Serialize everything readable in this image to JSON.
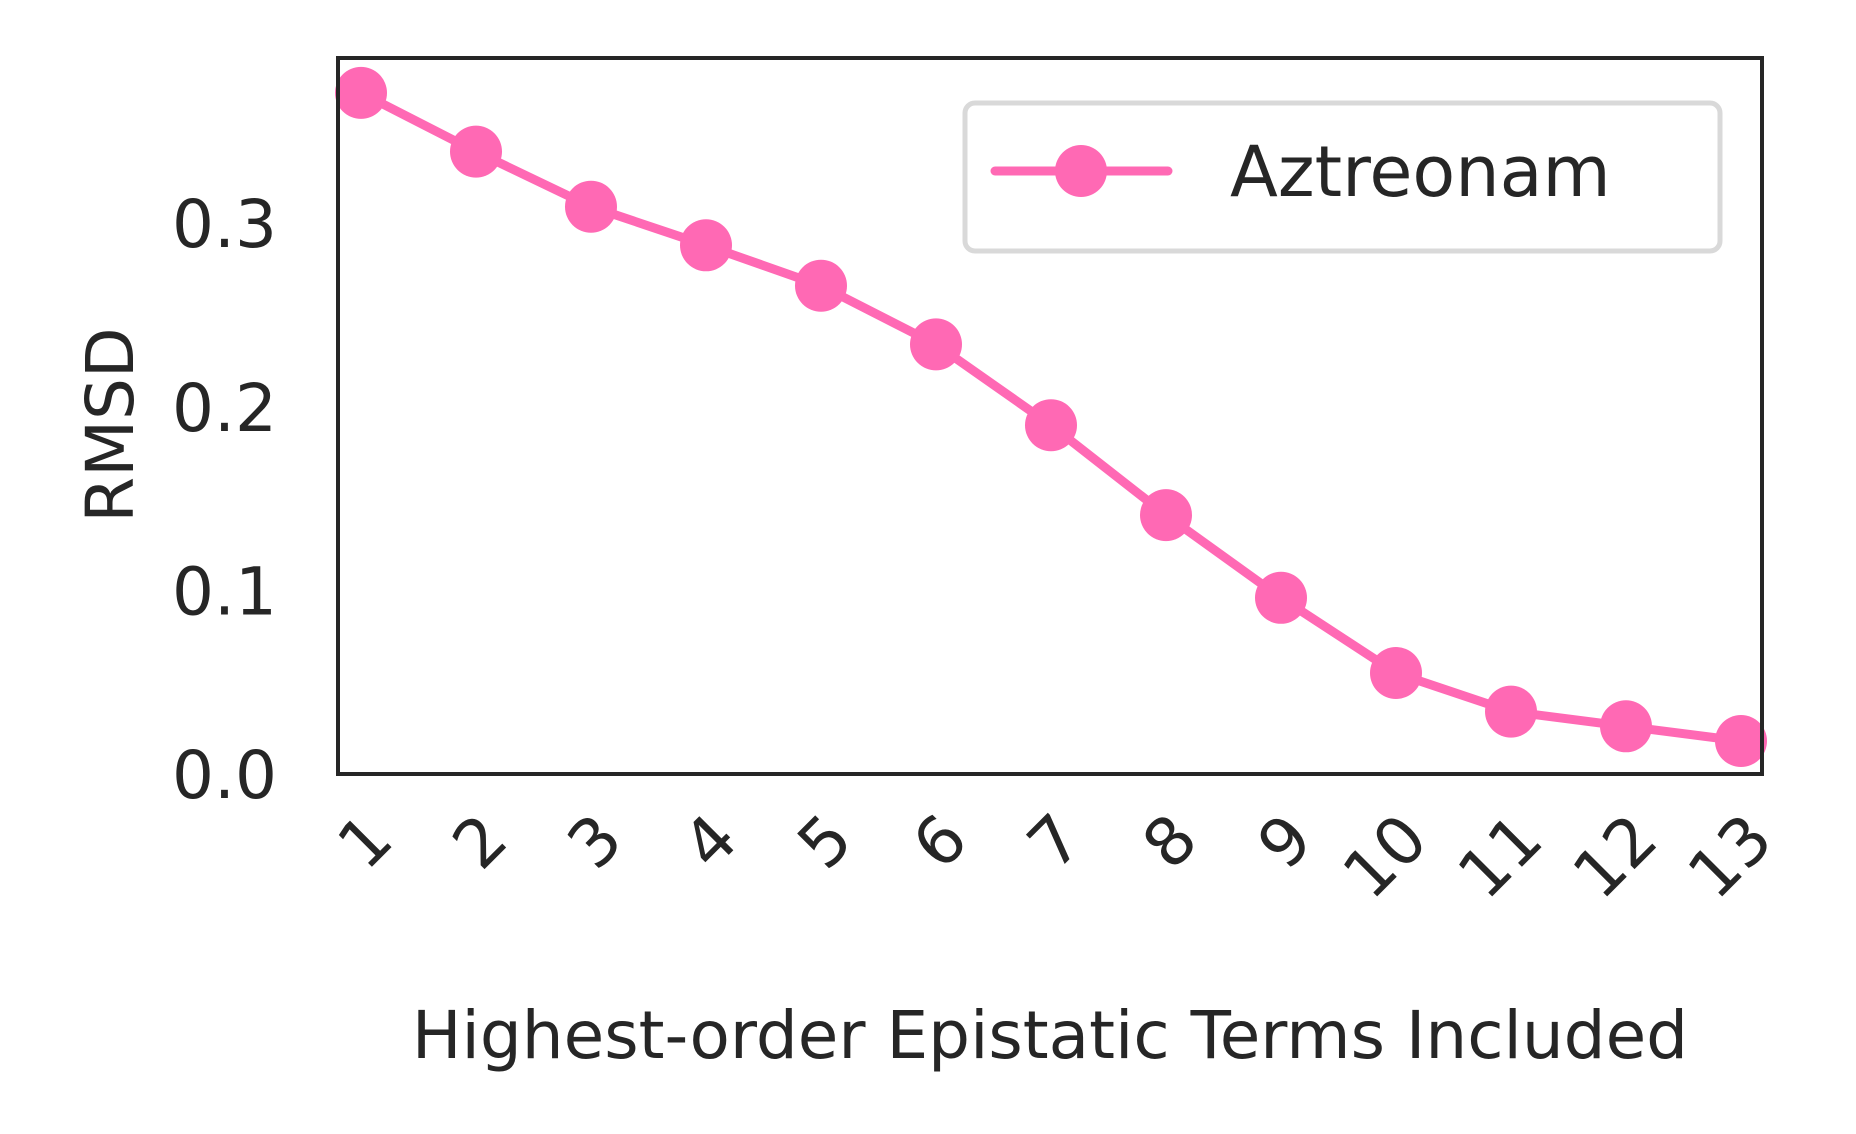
{
  "chart_data": {
    "type": "line",
    "x": [
      "1",
      "2",
      "3",
      "4",
      "5",
      "6",
      "7",
      "8",
      "9",
      "10",
      "11",
      "12",
      "13"
    ],
    "series": [
      {
        "name": "Aztreonam",
        "values": [
          0.371,
          0.339,
          0.309,
          0.288,
          0.266,
          0.234,
          0.19,
          0.141,
          0.096,
          0.055,
          0.034,
          0.026,
          0.018
        ]
      }
    ],
    "ylim": [
      0.0,
      0.39
    ],
    "yticks": [
      "0.0",
      "0.1",
      "0.2",
      "0.3"
    ],
    "xlabel": "Highest-order Epistatic Terms Included",
    "ylabel": "RMSD",
    "grid": false,
    "legend": "upper right",
    "colors": {
      "series": "#ff69b4",
      "axes": "#262626",
      "legend_border": "#d9d9d9"
    }
  }
}
